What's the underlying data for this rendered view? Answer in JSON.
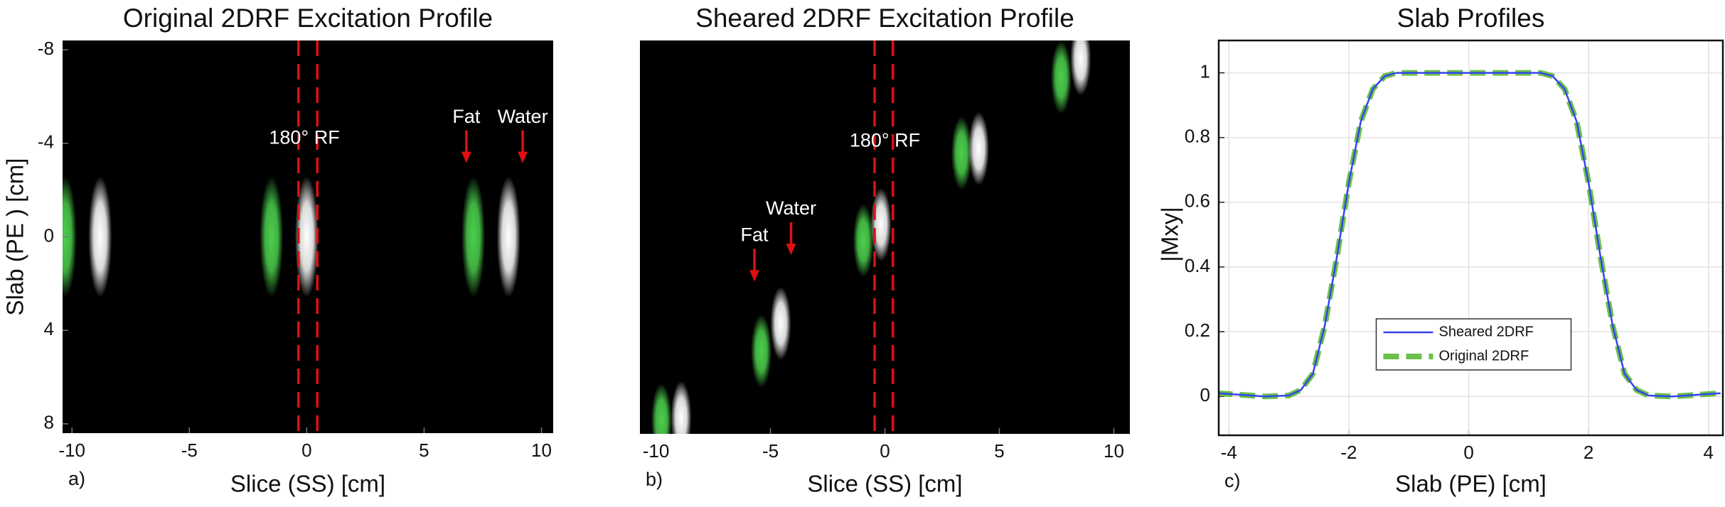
{
  "chart_data": [
    {
      "type": "image",
      "title": "Original 2DRF Excitation Profile",
      "xlabel": "Slice (SS) [cm]",
      "ylabel": "Slab (PE ) [cm]",
      "label": "a)",
      "xlim": [
        -10.4,
        10.5
      ],
      "ylim": [
        8.4,
        -8.4
      ],
      "xticks": [
        -10,
        -5,
        0,
        5,
        10
      ],
      "yticks": [
        -8,
        -4,
        0,
        4,
        8
      ],
      "background": "#000000",
      "series": [
        {
          "color": "#4ccf4c",
          "x": [
            -10.3,
            -1.5,
            7.1
          ],
          "y": [
            0,
            0,
            0
          ]
        },
        {
          "color": "#ffffff",
          "x": [
            -8.8,
            0,
            8.6
          ],
          "y": [
            0,
            0,
            0
          ]
        }
      ],
      "vlines": [
        -0.35,
        0.45
      ],
      "vline_color": "#e01010",
      "annotations": [
        {
          "text": "180° RF",
          "x": -0.1,
          "y": -4.2,
          "arrow": false
        },
        {
          "text": "Fat",
          "x": 6.8,
          "y": -5.1,
          "arrow": true
        },
        {
          "text": "Water",
          "x": 9.2,
          "y": -5.1,
          "arrow": true
        }
      ]
    },
    {
      "type": "image",
      "title": "Sheared 2DRF Excitation Profile",
      "xlabel": "Slice (SS) [cm]",
      "label": "b)",
      "xlim": [
        -10.7,
        10.7
      ],
      "ylim": [
        8.5,
        -8.6
      ],
      "xticks": [
        -10,
        -5,
        0,
        5,
        10
      ],
      "background": "#000000",
      "series": [
        {
          "color": "#4ccf4c",
          "x": [
            -9.76,
            -5.4,
            -0.94,
            3.35,
            7.7
          ],
          "y": [
            7.9,
            4.9,
            0.1,
            -3.7,
            -7.0
          ]
        },
        {
          "color": "#ffffff",
          "x": [
            -8.9,
            -4.55,
            -0.17,
            4.1,
            8.55
          ],
          "y": [
            7.8,
            3.7,
            -0.6,
            -3.9,
            -7.8
          ]
        }
      ],
      "vlines": [
        -0.45,
        0.35
      ],
      "vline_color": "#e01010",
      "annotations": [
        {
          "text": "180° RF",
          "x": 0.0,
          "y": -4.2,
          "arrow": false
        },
        {
          "text": "Fat",
          "x": -5.7,
          "y": -0.1,
          "arrow": true
        },
        {
          "text": "Water",
          "x": -4.1,
          "y": -1.25,
          "arrow": true
        }
      ]
    },
    {
      "type": "line",
      "title": "Slab Profiles",
      "xlabel": "Slab (PE) [cm]",
      "ylabel": "|Mxy|",
      "label": "c)",
      "xlim": [
        -4.17,
        4.24
      ],
      "ylim": [
        -0.12,
        1.1
      ],
      "xticks": [
        -4,
        -2,
        0,
        2,
        4
      ],
      "yticks": [
        0,
        0.2,
        0.4,
        0.6,
        0.8,
        1
      ],
      "grid": true,
      "legend": "lower center",
      "x": [
        -4.2,
        -3.8,
        -3.4,
        -3.0,
        -2.8,
        -2.6,
        -2.4,
        -2.2,
        -2.0,
        -1.8,
        -1.6,
        -1.4,
        -1.2,
        -0.6,
        0,
        0.6,
        1.2,
        1.4,
        1.6,
        1.8,
        2.0,
        2.2,
        2.4,
        2.6,
        2.8,
        3.0,
        3.4,
        3.8,
        4.2
      ],
      "series": [
        {
          "name": "Sheared 2DRF",
          "color": "#3344ee",
          "style": "solid",
          "values": [
            0.01,
            0.005,
            0,
            0.003,
            0.02,
            0.07,
            0.22,
            0.43,
            0.66,
            0.85,
            0.95,
            0.99,
            1,
            1,
            1,
            1,
            1,
            0.99,
            0.95,
            0.85,
            0.66,
            0.43,
            0.22,
            0.07,
            0.02,
            0.003,
            0,
            0.005,
            0.01
          ]
        },
        {
          "name": "Original 2DRF",
          "color": "#6cc04a",
          "style": "dashed",
          "values": [
            0.01,
            0.005,
            0,
            0.003,
            0.02,
            0.07,
            0.22,
            0.43,
            0.66,
            0.85,
            0.95,
            0.99,
            1,
            1,
            1,
            1,
            1,
            0.99,
            0.95,
            0.85,
            0.66,
            0.43,
            0.22,
            0.07,
            0.02,
            0.003,
            0,
            0.005,
            0.01
          ]
        }
      ]
    }
  ]
}
